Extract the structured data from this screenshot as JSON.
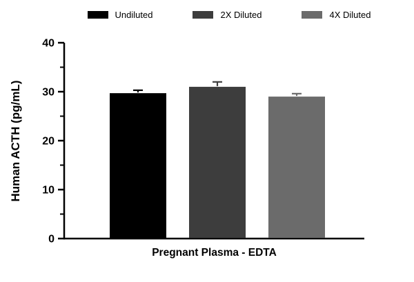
{
  "chart_data": {
    "type": "bar",
    "title": "",
    "xlabel": "Pregnant Plasma - EDTA",
    "ylabel": "Human ACTH (pg/mL)",
    "categories": [
      "Undiluted",
      "2X Diluted",
      "4X Diluted"
    ],
    "values": [
      29.7,
      31.0,
      29.0
    ],
    "errors": [
      0.6,
      1.0,
      0.6
    ],
    "bar_colors": [
      "#000000",
      "#3d3d3d",
      "#6b6b6b"
    ],
    "ylim": [
      0,
      40
    ],
    "yticks": [
      0,
      10,
      20,
      30,
      40
    ],
    "ytick_minor": 5,
    "grid": false,
    "legend_position": "top",
    "axis_color": "#000000"
  }
}
